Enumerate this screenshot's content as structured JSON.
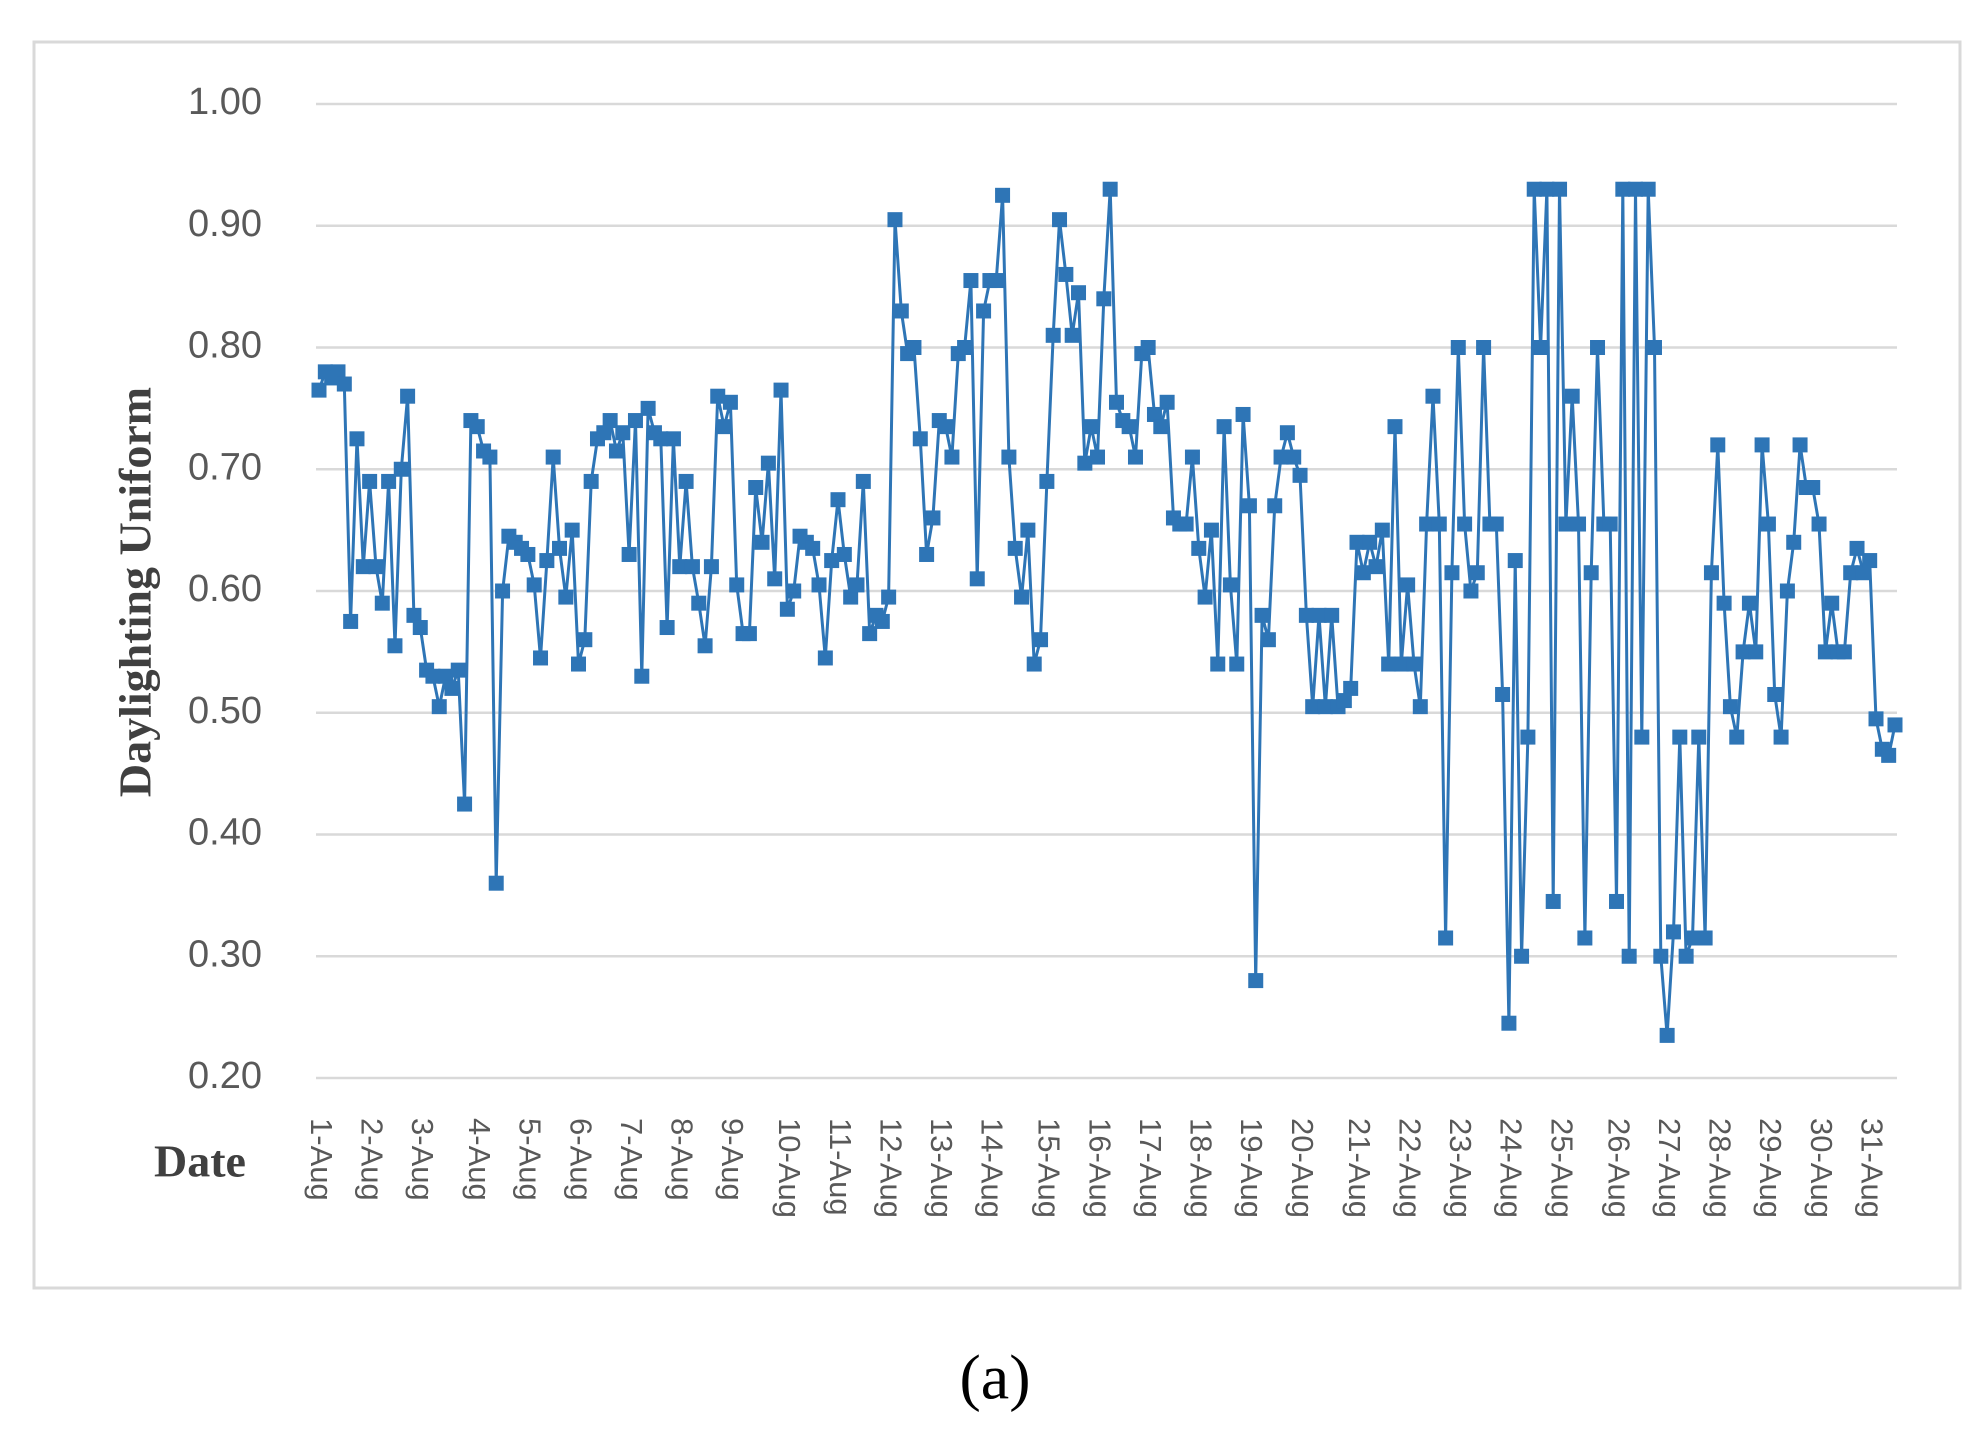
{
  "chart_data": {
    "type": "line",
    "ylabel": "Daylighting Uniform",
    "xlabel": "Date",
    "caption": "(a)",
    "color": "#2e75b6",
    "grid": true,
    "ylim": [
      0.2,
      1.0
    ],
    "yticks": [
      {
        "value": 0.2,
        "label": "0.20"
      },
      {
        "value": 0.3,
        "label": "0.30"
      },
      {
        "value": 0.4,
        "label": "0.40"
      },
      {
        "value": 0.5,
        "label": "0.50"
      },
      {
        "value": 0.6,
        "label": "0.60"
      },
      {
        "value": 0.7,
        "label": "0.70"
      },
      {
        "value": 0.8,
        "label": "0.80"
      },
      {
        "value": 0.9,
        "label": "0.90"
      },
      {
        "value": 1.0,
        "label": "1.00"
      }
    ],
    "categories": [
      "1-Aug",
      null,
      null,
      null,
      null,
      null,
      null,
      null,
      "2-Aug",
      null,
      null,
      null,
      null,
      null,
      null,
      null,
      "3-Aug",
      null,
      null,
      null,
      null,
      null,
      null,
      null,
      null,
      "4-Aug",
      null,
      null,
      null,
      null,
      null,
      null,
      null,
      "5-Aug",
      null,
      null,
      null,
      null,
      null,
      null,
      null,
      "6-Aug",
      null,
      null,
      null,
      null,
      null,
      null,
      null,
      "7-Aug",
      null,
      null,
      null,
      null,
      null,
      null,
      null,
      "8-Aug",
      null,
      null,
      null,
      null,
      null,
      null,
      null,
      "9-Aug",
      null,
      null,
      null,
      null,
      null,
      null,
      null,
      null,
      "10-Aug",
      null,
      null,
      null,
      null,
      null,
      null,
      null,
      "11-Aug",
      null,
      null,
      null,
      null,
      null,
      null,
      null,
      "12-Aug",
      null,
      null,
      null,
      null,
      null,
      null,
      null,
      "13-Aug",
      null,
      null,
      null,
      null,
      null,
      null,
      null,
      "14-Aug",
      null,
      null,
      null,
      null,
      null,
      null,
      null,
      null,
      "15-Aug",
      null,
      null,
      null,
      null,
      null,
      null,
      null,
      "16-Aug",
      null,
      null,
      null,
      null,
      null,
      null,
      null,
      "17-Aug",
      null,
      null,
      null,
      null,
      null,
      null,
      null,
      "18-Aug",
      null,
      null,
      null,
      null,
      null,
      null,
      null,
      "19-Aug",
      null,
      null,
      null,
      null,
      null,
      null,
      null,
      "20-Aug",
      null,
      null,
      null,
      null,
      null,
      null,
      null,
      null,
      "21-Aug",
      null,
      null,
      null,
      null,
      null,
      null,
      null,
      "22-Aug",
      null,
      null,
      null,
      null,
      null,
      null,
      null,
      "23-Aug",
      null,
      null,
      null,
      null,
      null,
      null,
      null,
      "24-Aug",
      null,
      null,
      null,
      null,
      null,
      null,
      null,
      "25-Aug",
      null,
      null,
      null,
      null,
      null,
      null,
      null,
      null,
      "26-Aug",
      null,
      null,
      null,
      null,
      null,
      null,
      null,
      "27-Aug",
      null,
      null,
      null,
      null,
      null,
      null,
      null,
      "28-Aug",
      null,
      null,
      null,
      null,
      null,
      null,
      null,
      "29-Aug",
      null,
      null,
      null,
      null,
      null,
      null,
      null,
      "30-Aug",
      null,
      null,
      null,
      null,
      null,
      null,
      null,
      "31-Aug",
      null,
      null,
      null,
      null
    ],
    "values": [
      0.765,
      0.78,
      0.775,
      0.78,
      0.77,
      0.575,
      0.725,
      0.62,
      0.69,
      0.62,
      0.59,
      0.69,
      0.555,
      0.7,
      0.76,
      0.58,
      0.57,
      0.535,
      0.53,
      0.505,
      0.53,
      0.52,
      0.535,
      0.425,
      0.74,
      0.735,
      0.715,
      0.71,
      0.36,
      0.6,
      0.645,
      0.64,
      0.635,
      0.63,
      0.605,
      0.545,
      0.625,
      0.71,
      0.635,
      0.595,
      0.65,
      0.54,
      0.56,
      0.69,
      0.725,
      0.73,
      0.74,
      0.715,
      0.73,
      0.63,
      0.74,
      0.53,
      0.75,
      0.73,
      0.725,
      0.57,
      0.725,
      0.62,
      0.69,
      0.62,
      0.59,
      0.555,
      0.62,
      0.76,
      0.735,
      0.755,
      0.605,
      0.565,
      0.565,
      0.685,
      0.64,
      0.705,
      0.61,
      0.765,
      0.585,
      0.6,
      0.645,
      0.64,
      0.635,
      0.605,
      0.545,
      0.625,
      0.675,
      0.63,
      0.595,
      0.605,
      0.69,
      0.565,
      0.58,
      0.575,
      0.595,
      0.905,
      0.83,
      0.795,
      0.8,
      0.725,
      0.63,
      0.66,
      0.74,
      0.735,
      0.71,
      0.795,
      0.8,
      0.855,
      0.61,
      0.83,
      0.855,
      0.855,
      0.925,
      0.71,
      0.635,
      0.595,
      0.65,
      0.54,
      0.56,
      0.69,
      0.81,
      0.905,
      0.86,
      0.81,
      0.845,
      0.705,
      0.735,
      0.71,
      0.84,
      0.93,
      0.755,
      0.74,
      0.735,
      0.71,
      0.795,
      0.8,
      0.745,
      0.735,
      0.755,
      0.66,
      0.655,
      0.655,
      0.71,
      0.635,
      0.595,
      0.65,
      0.54,
      0.735,
      0.605,
      0.54,
      0.745,
      0.67,
      0.28,
      0.58,
      0.56,
      0.67,
      0.71,
      0.73,
      0.71,
      0.695,
      0.58,
      0.505,
      0.58,
      0.505,
      0.58,
      0.505,
      0.51,
      0.52,
      0.64,
      0.615,
      0.64,
      0.62,
      0.65,
      0.54,
      0.735,
      0.54,
      0.605,
      0.54,
      0.505,
      0.655,
      0.76,
      0.655,
      0.315,
      0.615,
      0.8,
      0.655,
      0.6,
      0.615,
      0.8,
      0.655,
      0.655,
      0.515,
      0.245,
      0.625,
      0.3,
      0.48,
      0.93,
      0.8,
      0.93,
      0.345,
      0.93,
      0.655,
      0.76,
      0.655,
      0.315,
      0.615,
      0.8,
      0.655,
      0.655,
      0.345,
      0.93,
      0.3,
      0.93,
      0.48,
      0.93,
      0.8,
      0.3,
      0.235,
      0.32,
      0.48,
      0.3,
      0.315,
      0.48,
      0.315,
      0.615,
      0.72,
      0.59,
      0.505,
      0.48,
      0.55,
      0.59,
      0.55,
      0.72,
      0.655,
      0.515,
      0.48,
      0.6,
      0.64,
      0.72,
      0.685,
      0.685,
      0.655,
      0.55,
      0.59,
      0.55,
      0.55,
      0.615,
      0.635,
      0.615,
      0.625,
      0.495,
      0.47,
      0.465,
      0.49
    ]
  }
}
